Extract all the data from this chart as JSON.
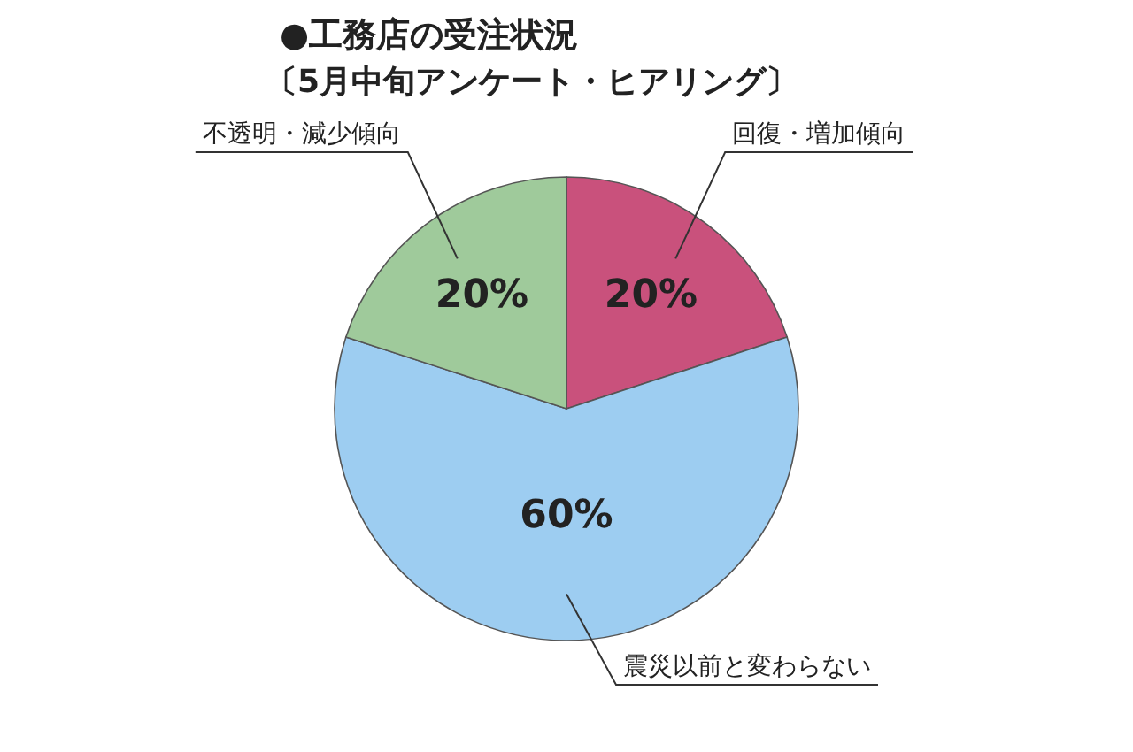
{
  "chart_data": {
    "type": "pie",
    "title": "●工務店の受注状況",
    "subtitle": "〔5月中旬アンケート・ヒアリング〕",
    "categories": [
      "回復・増加傾向",
      "震災以前と変わらない",
      "不透明・減少傾向"
    ],
    "values": [
      20,
      60,
      20
    ],
    "colors": [
      "#c9517c",
      "#9dcdf1",
      "#9fca9b"
    ],
    "value_labels": [
      "20%",
      "60%",
      "20%"
    ]
  }
}
